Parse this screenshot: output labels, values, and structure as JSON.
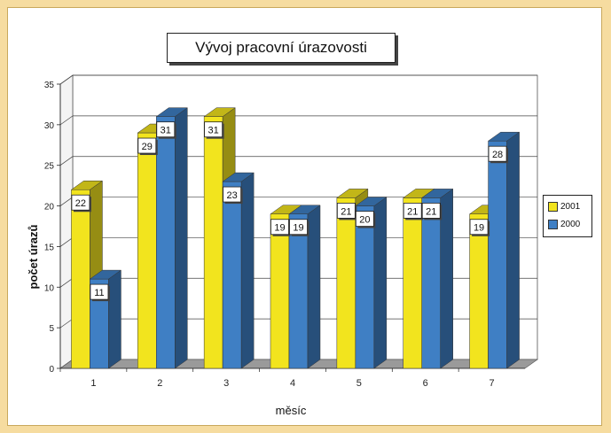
{
  "chart_data": {
    "type": "bar",
    "title": "Vývoj pracovní úrazovosti",
    "xlabel": "měsíc",
    "ylabel": "počet úrazů",
    "categories": [
      "1",
      "2",
      "3",
      "4",
      "5",
      "6",
      "7"
    ],
    "series": [
      {
        "name": "2001",
        "values": [
          22,
          29,
          31,
          19,
          21,
          21,
          19
        ],
        "color": "#f2e41e"
      },
      {
        "name": "2000",
        "values": [
          11,
          31,
          23,
          19,
          20,
          21,
          28
        ],
        "color": "#3f7fc4"
      }
    ],
    "ylim": [
      0,
      35
    ],
    "yticks": [
      0,
      5,
      10,
      15,
      20,
      25,
      30,
      35
    ],
    "grid": true,
    "legend_position": "right",
    "style": "3d-clustered-columns"
  }
}
